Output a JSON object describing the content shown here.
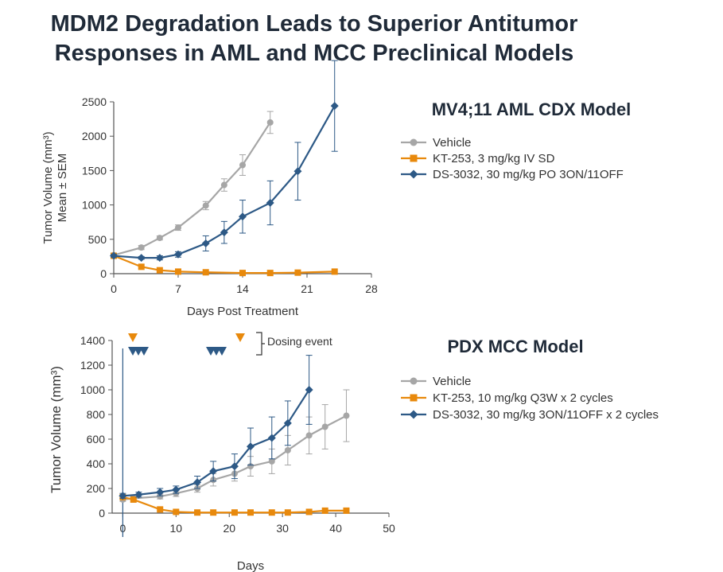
{
  "page": {
    "title_line1": "MDM2 Degradation Leads to Superior Antitumor",
    "title_line2": "Responses in AML and MCC Preclinical Models"
  },
  "chart_data": [
    {
      "type": "line",
      "title": "MV4;11 AML CDX Model",
      "xlabel": "Days Post Treatment",
      "ylabel_line1": "Tumor Volume (mm³)",
      "ylabel_line2": "Mean ± SEM",
      "xlim": [
        0,
        28
      ],
      "ylim": [
        0,
        2500
      ],
      "xticks": [
        0,
        7,
        14,
        21,
        28
      ],
      "yticks": [
        0,
        500,
        1000,
        1500,
        2000,
        2500
      ],
      "series": [
        {
          "name": "Vehicle",
          "color": "#a6a6a6",
          "marker": "circle",
          "x": [
            0,
            3,
            5,
            7,
            10,
            12,
            14,
            17
          ],
          "y": [
            270,
            380,
            520,
            670,
            990,
            1290,
            1580,
            2200
          ],
          "err": [
            30,
            30,
            30,
            40,
            60,
            90,
            150,
            160
          ]
        },
        {
          "name": "KT-253, 3 mg/kg IV SD",
          "color": "#e8890c",
          "marker": "square",
          "x": [
            0,
            3,
            5,
            7,
            10,
            14,
            17,
            20,
            24
          ],
          "y": [
            260,
            100,
            50,
            30,
            20,
            10,
            10,
            15,
            30
          ],
          "err": [
            0,
            0,
            0,
            0,
            0,
            0,
            0,
            0,
            0
          ]
        },
        {
          "name": "DS-3032, 30 mg/kg PO 3ON/11OFF",
          "color": "#2d5986",
          "marker": "diamond",
          "x": [
            0,
            3,
            5,
            7,
            10,
            12,
            14,
            17,
            20,
            24
          ],
          "y": [
            260,
            230,
            230,
            280,
            440,
            600,
            830,
            1030,
            1490,
            2440
          ],
          "err": [
            20,
            20,
            30,
            40,
            110,
            160,
            240,
            320,
            420,
            660
          ]
        }
      ]
    },
    {
      "type": "line",
      "title": "PDX MCC Model",
      "xlabel": "Days",
      "ylabel": "Tumor Volume (mm³)",
      "xlim": [
        -2,
        50
      ],
      "ylim": [
        0,
        1400
      ],
      "xticks": [
        0,
        10,
        20,
        30,
        40,
        50
      ],
      "yticks": [
        0,
        200,
        400,
        600,
        800,
        1000,
        1200,
        1400
      ],
      "annotation": "Dosing event",
      "dosing_kt253_days": [
        0,
        21
      ],
      "dosing_ds3032_days": [
        0,
        1,
        2,
        14,
        15,
        16
      ],
      "series": [
        {
          "name": "Vehicle",
          "color": "#a6a6a6",
          "marker": "circle",
          "x": [
            0,
            2,
            7,
            10,
            14,
            17,
            21,
            24,
            28,
            31,
            35,
            38,
            42
          ],
          "y": [
            110,
            120,
            135,
            160,
            200,
            270,
            320,
            380,
            420,
            510,
            630,
            700,
            790
          ],
          "err": [
            15,
            15,
            20,
            25,
            30,
            50,
            60,
            80,
            100,
            120,
            150,
            180,
            210
          ]
        },
        {
          "name": "KT-253, 10 mg/kg Q3W x 2 cycles",
          "color": "#e8890c",
          "marker": "square",
          "x": [
            0,
            2,
            7,
            10,
            14,
            17,
            21,
            24,
            28,
            31,
            35,
            38,
            42
          ],
          "y": [
            130,
            110,
            30,
            10,
            5,
            5,
            5,
            5,
            5,
            5,
            10,
            20,
            20
          ],
          "err": [
            0,
            0,
            0,
            0,
            0,
            0,
            0,
            0,
            0,
            0,
            0,
            0,
            0
          ]
        },
        {
          "name": "DS-3032, 30 mg/kg 3ON/11OFF x 2 cycles",
          "color": "#2d5986",
          "marker": "diamond",
          "x": [
            0,
            3,
            7,
            10,
            14,
            17,
            21,
            24,
            28,
            31,
            35
          ],
          "y": [
            140,
            150,
            170,
            190,
            250,
            340,
            380,
            540,
            610,
            730,
            1000
          ],
          "err": [
            20,
            20,
            30,
            30,
            50,
            80,
            100,
            150,
            170,
            180,
            280
          ]
        }
      ]
    }
  ]
}
